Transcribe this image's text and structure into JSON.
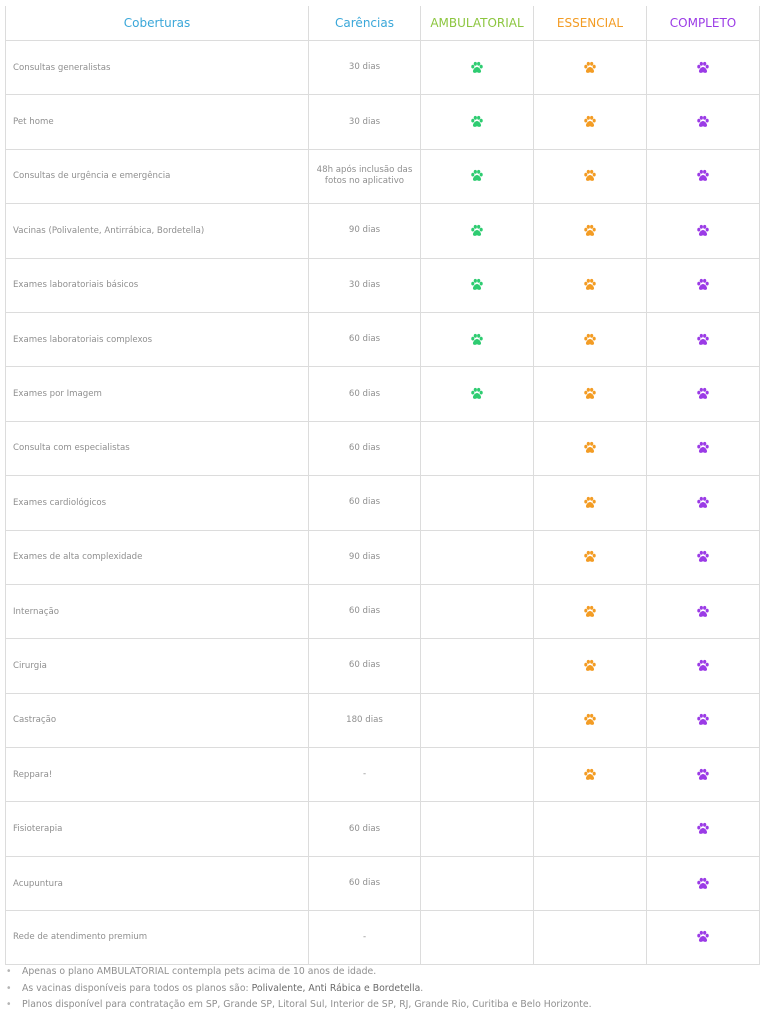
{
  "header": {
    "coberturas": "Coberturas",
    "carencias": "Carências",
    "ambulatorial": "AMBULATORIAL",
    "essencial": "ESSENCIAL",
    "completo": "COMPLETO"
  },
  "colors": {
    "header_blue": "#3aa7d9",
    "ambulatorial": "#2ecc71",
    "essencial": "#f39c24",
    "completo": "#9b3be6",
    "ambulatorial_header": "#8cc63f",
    "border": "#dcdcdc"
  },
  "icon": "paw-icon",
  "rows": [
    {
      "cobertura": "Consultas generalistas",
      "carencia": "30 dias",
      "ambulatorial": true,
      "essencial": true,
      "completo": true
    },
    {
      "cobertura": "Pet home",
      "carencia": "30 dias",
      "ambulatorial": true,
      "essencial": true,
      "completo": true
    },
    {
      "cobertura": "Consultas de urgência e emergência",
      "carencia": "48h após inclusão das fotos no aplicativo",
      "ambulatorial": true,
      "essencial": true,
      "completo": true
    },
    {
      "cobertura": "Vacinas (Polivalente, Antirrábica, Bordetella)",
      "carencia": "90 dias",
      "ambulatorial": true,
      "essencial": true,
      "completo": true
    },
    {
      "cobertura": "Exames laboratoriais básicos",
      "carencia": "30 dias",
      "ambulatorial": true,
      "essencial": true,
      "completo": true
    },
    {
      "cobertura": "Exames laboratoriais complexos",
      "carencia": "60 dias",
      "ambulatorial": true,
      "essencial": true,
      "completo": true
    },
    {
      "cobertura": "Exames por Imagem",
      "carencia": "60 dias",
      "ambulatorial": true,
      "essencial": true,
      "completo": true
    },
    {
      "cobertura": "Consulta com especialistas",
      "carencia": "60 dias",
      "ambulatorial": false,
      "essencial": true,
      "completo": true
    },
    {
      "cobertura": "Exames cardiológicos",
      "carencia": "60 dias",
      "ambulatorial": false,
      "essencial": true,
      "completo": true
    },
    {
      "cobertura": "Exames de alta complexidade",
      "carencia": "90 dias",
      "ambulatorial": false,
      "essencial": true,
      "completo": true
    },
    {
      "cobertura": "Internação",
      "carencia": "60 dias",
      "ambulatorial": false,
      "essencial": true,
      "completo": true
    },
    {
      "cobertura": "Cirurgia",
      "carencia": "60 dias",
      "ambulatorial": false,
      "essencial": true,
      "completo": true
    },
    {
      "cobertura": "Castração",
      "carencia": "180 dias",
      "ambulatorial": false,
      "essencial": true,
      "completo": true
    },
    {
      "cobertura": "Reppara!",
      "carencia": "-",
      "ambulatorial": false,
      "essencial": true,
      "completo": true
    },
    {
      "cobertura": "Fisioterapia",
      "carencia": "60 dias",
      "ambulatorial": false,
      "essencial": false,
      "completo": true
    },
    {
      "cobertura": "Acupuntura",
      "carencia": "60 dias",
      "ambulatorial": false,
      "essencial": false,
      "completo": true
    },
    {
      "cobertura": "Rede de atendimento premium",
      "carencia": "-",
      "ambulatorial": false,
      "essencial": false,
      "completo": true
    }
  ],
  "notes": [
    {
      "text": "Apenas o plano AMBULATORIAL contempla pets acima de 10 anos de idade.",
      "bold": "",
      "suffix": ""
    },
    {
      "text": "As vacinas disponíveis para todos os planos são: ",
      "bold": "Polivalente, Anti Rábica e Bordetella",
      "suffix": "."
    },
    {
      "text": "Planos disponível para contratação em SP, Grande SP, Litoral Sul, Interior de SP, RJ, Grande Rio, Curitiba e Belo Horizonte.",
      "bold": "",
      "suffix": ""
    }
  ]
}
